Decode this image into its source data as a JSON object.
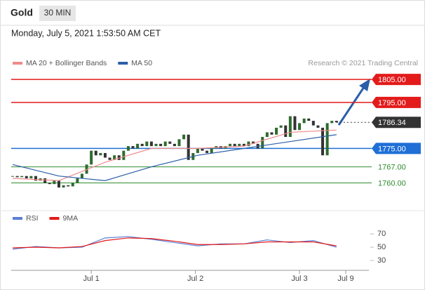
{
  "header": {
    "title": "Gold",
    "timeframe": "30 MIN"
  },
  "timestamp": "Monday, July 5, 2021 1:53:50 AM CET",
  "chart_data": [
    {
      "type": "candlestick",
      "credit": "Research © 2021 Trading Central",
      "closes": [
        1763,
        1762.5,
        1763,
        1762,
        1763,
        1761,
        1762,
        1760,
        1759.5,
        1761,
        1758,
        1759,
        1758.5,
        1760,
        1762,
        1764,
        1768,
        1774,
        1772,
        1773,
        1771,
        1770,
        1772,
        1770,
        1774,
        1776,
        1775,
        1777,
        1776,
        1778,
        1776,
        1777,
        1776,
        1778,
        1777,
        1776,
        1779,
        1781,
        1770,
        1773,
        1775,
        1774,
        1773,
        1775,
        1776,
        1775,
        1776,
        1777,
        1776,
        1777,
        1776,
        1778,
        1777,
        1775,
        1780,
        1782,
        1781,
        1784,
        1785,
        1780,
        1789,
        1783,
        1786,
        1788,
        1787,
        1785,
        1784,
        1772,
        1786,
        1787,
        1786.34
      ],
      "up_color": "#2e6b2e",
      "down_color": "#333333",
      "series": [
        {
          "name": "MA 20 + Bollinger Bands",
          "color": "#f08a8a",
          "x": [
            0,
            10,
            20,
            30,
            40,
            50,
            60,
            70
          ],
          "values": [
            1762,
            1761,
            1769,
            1775,
            1775,
            1776,
            1782,
            1783
          ]
        },
        {
          "name": "MA 50",
          "color": "#2a5ea8",
          "x": [
            0,
            10,
            20,
            30,
            40,
            50,
            60,
            70
          ],
          "values": [
            1768,
            1763,
            1761,
            1767,
            1772,
            1775,
            1778,
            1781
          ]
        }
      ],
      "levels": [
        {
          "value": 1805,
          "label": "1805.00",
          "color": "#e31b1b",
          "tag": true,
          "dash": false
        },
        {
          "value": 1795,
          "label": "1795.00",
          "color": "#e31b1b",
          "tag": true,
          "dash": false
        },
        {
          "value": 1786.34,
          "label": "1786.34",
          "color": "#333333",
          "tag": true,
          "dash": true
        },
        {
          "value": 1775,
          "label": "1775.00",
          "color": "#1f6fd6",
          "tag": true,
          "dash": false
        },
        {
          "value": 1767,
          "label": "1767.00",
          "color": "#2e8b2e",
          "tag": false,
          "dash": false
        },
        {
          "value": 1760,
          "label": "1760.00",
          "color": "#2e8b2e",
          "tag": false,
          "dash": false
        }
      ],
      "ylim": [
        1751,
        1809
      ],
      "xlim": [
        -0.3,
        77
      ],
      "xticks": [
        {
          "value": 17,
          "label": "Jul 1"
        },
        {
          "value": 39.5,
          "label": "Jul 2"
        },
        {
          "value": 62,
          "label": "Jul 3"
        },
        {
          "value": 72,
          "label": "Jul 9"
        }
      ]
    },
    {
      "type": "line",
      "series": [
        {
          "name": "RSI",
          "color": "#5b7fd6",
          "x": [
            0,
            5,
            10,
            15,
            20,
            25,
            30,
            35,
            40,
            45,
            50,
            55,
            60,
            65,
            70
          ],
          "values": [
            47,
            51,
            49,
            50,
            64,
            66,
            62,
            57,
            52,
            55,
            55,
            61,
            57,
            60,
            50
          ]
        },
        {
          "name": "9MA",
          "color": "#e31b1b",
          "x": [
            0,
            5,
            10,
            15,
            20,
            25,
            30,
            35,
            40,
            45,
            50,
            55,
            60,
            65,
            70
          ],
          "values": [
            49,
            50,
            49,
            51,
            60,
            64,
            63,
            59,
            54,
            54,
            55,
            58,
            58,
            58,
            52
          ]
        }
      ],
      "ylim": [
        15,
        84
      ],
      "yticks": [
        30,
        50,
        70
      ],
      "xlim": [
        -0.3,
        77
      ]
    }
  ]
}
